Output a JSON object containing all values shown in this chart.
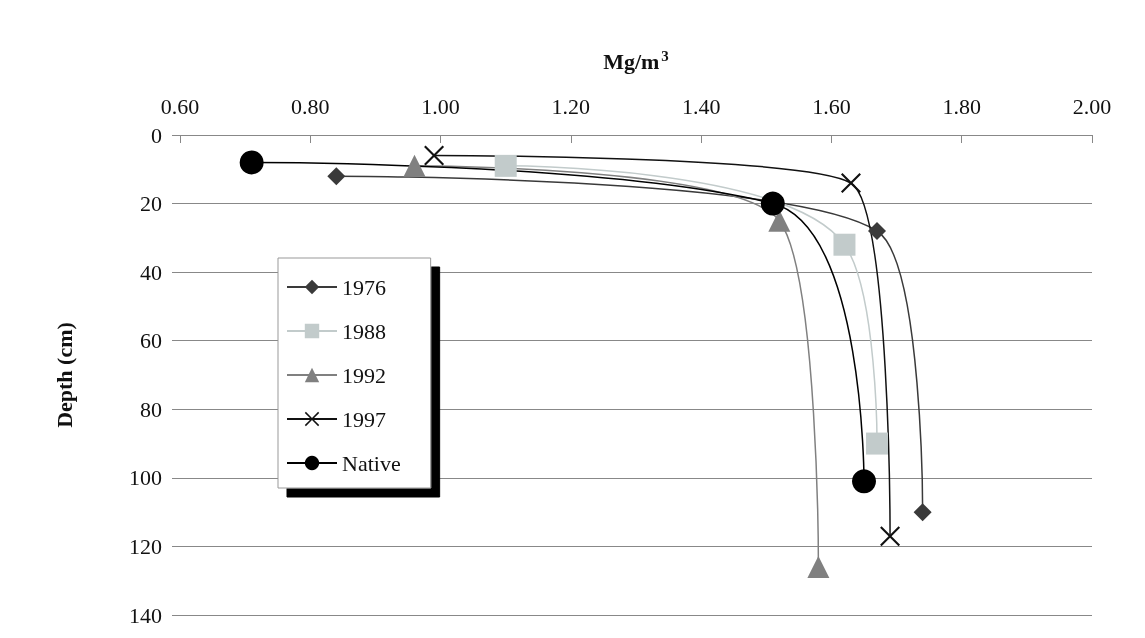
{
  "chart_data": {
    "type": "line",
    "xlabel": "Mg/m$^{3}$",
    "ylabel": "Depth (cm)",
    "xlim": [
      0.6,
      2.0
    ],
    "xticks": [
      {
        "value": 0.6,
        "label": "0.60"
      },
      {
        "value": 0.8,
        "label": "0.80"
      },
      {
        "value": 1.0,
        "label": "1.00"
      },
      {
        "value": 1.2,
        "label": "1.20"
      },
      {
        "value": 1.4,
        "label": "1.40"
      },
      {
        "value": 1.6,
        "label": "1.60"
      },
      {
        "value": 1.8,
        "label": "1.80"
      },
      {
        "value": 2.0,
        "label": "2.00"
      }
    ],
    "ylim": [
      140,
      0
    ],
    "yticks": [
      0,
      20,
      40,
      60,
      80,
      100,
      120,
      140
    ],
    "grid": "y",
    "legend": "left",
    "series": [
      {
        "name": "1976",
        "color": "#3a3a3a",
        "marker": "diamond",
        "x": [
          0.84,
          1.67,
          1.74
        ],
        "values": [
          12,
          28,
          110
        ]
      },
      {
        "name": "1988",
        "color": "#c2cbcb",
        "marker": "square",
        "x": [
          1.1,
          1.62,
          1.67
        ],
        "values": [
          9,
          32,
          90
        ]
      },
      {
        "name": "1992",
        "color": "#808080",
        "marker": "triangle",
        "x": [
          0.96,
          1.52,
          1.58
        ],
        "values": [
          9,
          25,
          126
        ]
      },
      {
        "name": "1997",
        "color": "#111111",
        "marker": "cross",
        "x": [
          0.99,
          1.63,
          1.69
        ],
        "values": [
          6,
          14,
          117
        ]
      },
      {
        "name": "Native",
        "color": "#000000",
        "marker": "circle",
        "x": [
          0.71,
          1.51,
          1.65
        ],
        "values": [
          8,
          20,
          101
        ]
      }
    ]
  }
}
